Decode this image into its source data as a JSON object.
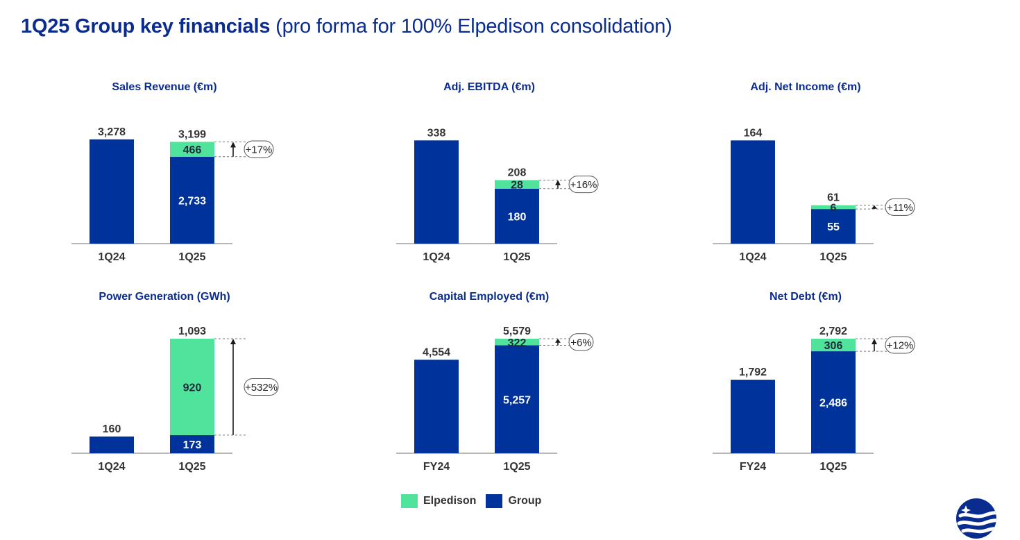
{
  "title": {
    "main": "1Q25 Group key financials",
    "sub": "(pro forma for 100% Elpedison consolidation)"
  },
  "colors": {
    "group": "#00329b",
    "elpedison": "#50e39b",
    "title": "#0b2c8f",
    "value_text": "#333333",
    "axis": "#8c8c8c"
  },
  "legend": {
    "elpedison": "Elpedison",
    "group": "Group"
  },
  "logo": {
    "icon": "company-logo-icon"
  },
  "chart_data": [
    {
      "type": "bar",
      "stacked": true,
      "title": "Sales Revenue (€m)",
      "categories": [
        "1Q24",
        "1Q25"
      ],
      "series": [
        {
          "name": "Group",
          "values": [
            3278,
            2733
          ]
        },
        {
          "name": "Elpedison",
          "values": [
            0,
            466
          ]
        }
      ],
      "value_labels": [
        [
          "3,278",
          ""
        ],
        [
          "2,733",
          "466"
        ]
      ],
      "totals": [
        "3,278",
        "3,199"
      ],
      "change_label": "+17%",
      "ylim": [
        0,
        3600
      ],
      "grid": false
    },
    {
      "type": "bar",
      "stacked": true,
      "title": "Adj. EBITDA (€m)",
      "categories": [
        "1Q24",
        "1Q25"
      ],
      "series": [
        {
          "name": "Group",
          "values": [
            338,
            180
          ]
        },
        {
          "name": "Elpedison",
          "values": [
            0,
            28
          ]
        }
      ],
      "value_labels": [
        [
          "338",
          ""
        ],
        [
          "180",
          "28"
        ]
      ],
      "totals": [
        "338",
        "208"
      ],
      "change_label": "+16%",
      "ylim": [
        0,
        375
      ],
      "grid": false
    },
    {
      "type": "bar",
      "stacked": true,
      "title": "Adj. Net Income (€m)",
      "categories": [
        "1Q24",
        "1Q25"
      ],
      "series": [
        {
          "name": "Group",
          "values": [
            164,
            55
          ]
        },
        {
          "name": "Elpedison",
          "values": [
            0,
            6
          ]
        }
      ],
      "value_labels": [
        [
          "164",
          ""
        ],
        [
          "55",
          "6"
        ]
      ],
      "totals": [
        "164",
        "61"
      ],
      "change_label": "+11%",
      "ylim": [
        0,
        182
      ],
      "grid": false
    },
    {
      "type": "bar",
      "stacked": true,
      "title": "Power Generation (GWh)",
      "categories": [
        "1Q24",
        "1Q25"
      ],
      "series": [
        {
          "name": "Group",
          "values": [
            160,
            173
          ]
        },
        {
          "name": "Elpedison",
          "values": [
            0,
            920
          ]
        }
      ],
      "value_labels": [
        [
          "160",
          ""
        ],
        [
          "173",
          "920"
        ]
      ],
      "totals": [
        "160",
        "1,093"
      ],
      "change_label": "+532%",
      "ylim": [
        0,
        1093
      ],
      "grid": false
    },
    {
      "type": "bar",
      "stacked": true,
      "title": "Capital Employed (€m)",
      "categories": [
        "FY24",
        "1Q25"
      ],
      "series": [
        {
          "name": "Group",
          "values": [
            4554,
            5257
          ]
        },
        {
          "name": "Elpedison",
          "values": [
            0,
            322
          ]
        }
      ],
      "value_labels": [
        [
          "4,554",
          ""
        ],
        [
          "5,257",
          "322"
        ]
      ],
      "totals": [
        "4,554",
        "5,579"
      ],
      "change_label": "+6%",
      "ylim": [
        0,
        5579
      ],
      "grid": false
    },
    {
      "type": "bar",
      "stacked": true,
      "title": "Net Debt (€m)",
      "categories": [
        "FY24",
        "1Q25"
      ],
      "series": [
        {
          "name": "Group",
          "values": [
            1792,
            2486
          ]
        },
        {
          "name": "Elpedison",
          "values": [
            0,
            306
          ]
        }
      ],
      "value_labels": [
        [
          "1,792",
          ""
        ],
        [
          "2,486",
          "306"
        ]
      ],
      "totals": [
        "1,792",
        "2,792"
      ],
      "change_label": "+12%",
      "ylim": [
        0,
        2792
      ],
      "grid": false
    }
  ]
}
